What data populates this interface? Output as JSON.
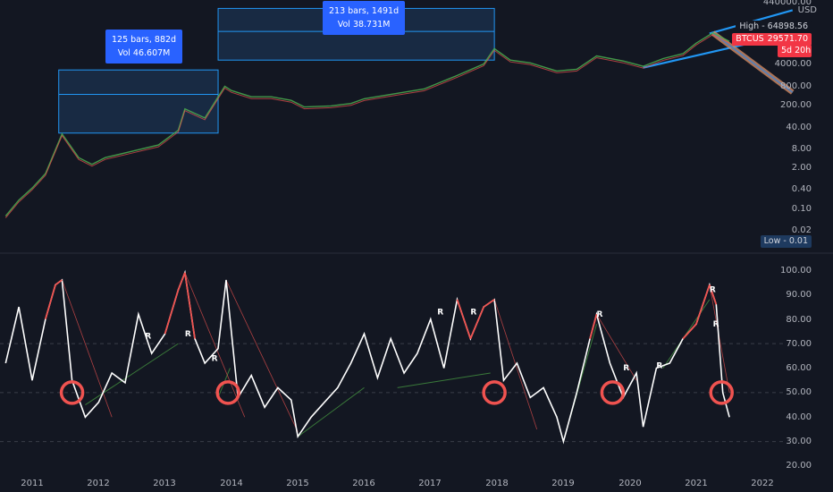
{
  "header": {
    "currency": "USD",
    "top_tick": "440000.00"
  },
  "price_axis": [
    "4000.00",
    "800.00",
    "200.00",
    "40.00",
    "8.00",
    "2.00",
    "0.40",
    "0.10",
    "0.02"
  ],
  "rsi_axis": [
    "100.00",
    "90.00",
    "80.00",
    "70.00",
    "60.00",
    "50.00",
    "40.00",
    "30.00",
    "20.00"
  ],
  "time_axis": [
    "2011",
    "2012",
    "2013",
    "2014",
    "2015",
    "2016",
    "2017",
    "2018",
    "2019",
    "2020",
    "2021",
    "2022"
  ],
  "boxes": [
    {
      "bars": "125 bars, 882d",
      "vol": "Vol 46.607M"
    },
    {
      "bars": "213 bars, 1491d",
      "vol": "Vol 38.731M"
    }
  ],
  "tags": {
    "high": "High - 64898.56",
    "symbol": "BTCUSD",
    "price": "29571.70",
    "countdown": "5d 20h",
    "low": "Low - 0.01"
  },
  "r_marker": "R",
  "colors": {
    "background": "#131722",
    "price_line": "#b2b5be",
    "rsi_line": "#ffffff",
    "rsi_overbought": "#f05350",
    "box_fill": "#1e3a5f",
    "box_stroke": "#2196f3",
    "trendline": "#2196f3",
    "circle": "#f05350",
    "support_line": "#3a7a3a"
  },
  "chart_data": [
    {
      "type": "line",
      "name": "BTCUSD price (log scale)",
      "x": [
        2010.6,
        2010.8,
        2011.0,
        2011.2,
        2011.45,
        2011.7,
        2011.9,
        2012.1,
        2012.5,
        2012.9,
        2013.2,
        2013.3,
        2013.6,
        2013.9,
        2014.0,
        2014.3,
        2014.6,
        2014.9,
        2015.1,
        2015.5,
        2015.8,
        2016.0,
        2016.5,
        2016.9,
        2017.4,
        2017.8,
        2017.96,
        2018.2,
        2018.5,
        2018.9,
        2019.2,
        2019.5,
        2019.9,
        2020.2,
        2020.5,
        2020.8,
        2021.0,
        2021.25,
        2021.5
      ],
      "values": [
        0.06,
        0.2,
        0.5,
        1.5,
        30,
        5,
        3,
        5,
        8,
        13,
        40,
        200,
        100,
        1100,
        800,
        500,
        500,
        380,
        230,
        250,
        300,
        430,
        650,
        900,
        2500,
        6000,
        19000,
        8000,
        6500,
        3500,
        4000,
        11000,
        7500,
        5000,
        9000,
        13000,
        29000,
        63000,
        33000
      ],
      "ylim": [
        0.01,
        440000
      ],
      "scale": "log",
      "high": 64898.56,
      "low": 0.01,
      "last": 29571.7
    },
    {
      "type": "line",
      "name": "RSI",
      "x": [
        2010.6,
        2010.8,
        2011.0,
        2011.2,
        2011.35,
        2011.45,
        2011.6,
        2011.8,
        2012.0,
        2012.2,
        2012.4,
        2012.6,
        2012.8,
        2013.0,
        2013.2,
        2013.3,
        2013.45,
        2013.6,
        2013.8,
        2013.92,
        2014.1,
        2014.3,
        2014.5,
        2014.7,
        2014.9,
        2015.0,
        2015.2,
        2015.4,
        2015.6,
        2015.8,
        2016.0,
        2016.2,
        2016.4,
        2016.6,
        2016.8,
        2017.0,
        2017.2,
        2017.4,
        2017.6,
        2017.8,
        2017.96,
        2018.1,
        2018.3,
        2018.5,
        2018.7,
        2018.9,
        2019.0,
        2019.2,
        2019.4,
        2019.5,
        2019.7,
        2019.9,
        2020.1,
        2020.2,
        2020.4,
        2020.6,
        2020.8,
        2021.0,
        2021.2,
        2021.3,
        2021.4,
        2021.5
      ],
      "values": [
        62,
        85,
        55,
        80,
        94,
        96,
        55,
        40,
        46,
        58,
        54,
        82,
        66,
        74,
        92,
        99,
        72,
        62,
        68,
        96,
        48,
        57,
        44,
        52,
        47,
        32,
        40,
        46,
        52,
        62,
        74,
        56,
        72,
        58,
        66,
        80,
        60,
        88,
        72,
        85,
        88,
        55,
        62,
        48,
        52,
        40,
        30,
        50,
        72,
        82,
        62,
        48,
        58,
        36,
        60,
        62,
        72,
        78,
        94,
        86,
        50,
        40
      ],
      "ylim": [
        20,
        100
      ],
      "levels": [
        70,
        50,
        30
      ]
    }
  ]
}
